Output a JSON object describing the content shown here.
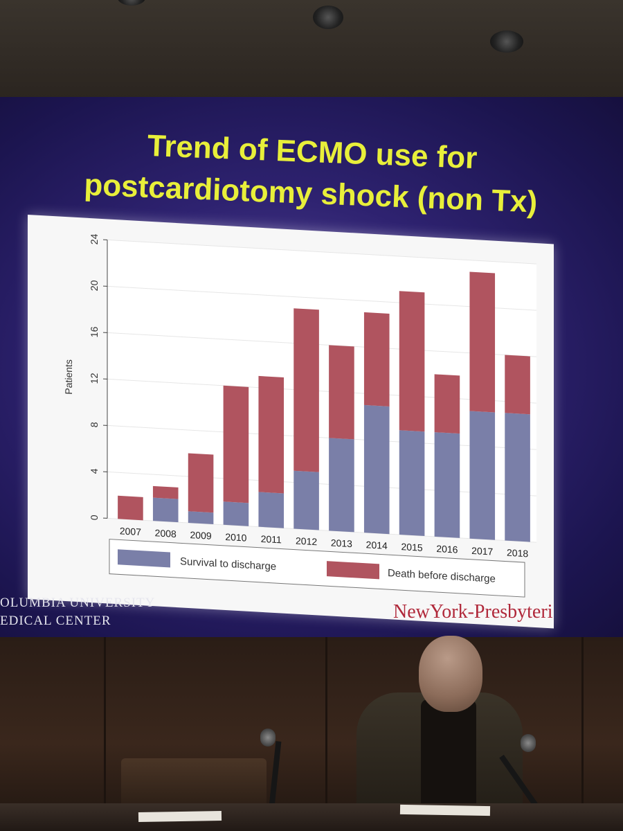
{
  "slide": {
    "title_line1": "Trend of ECMO use for",
    "title_line2": "postcardiotomy shock (non Tx)",
    "footer_left_line1": "OLUMBIA UNIVERSITY",
    "footer_left_line2": "EDICAL CENTER",
    "footer_right": "NewYork-Presbyteri"
  },
  "colors": {
    "title": "#e8ef3a",
    "survival": "#7a7fa8",
    "death": "#b0545f",
    "screen_background": "#2e2270",
    "chart_background": "#f7f7f7"
  },
  "chart_data": {
    "type": "bar",
    "stacked": true,
    "categories": [
      "2007",
      "2008",
      "2009",
      "2010",
      "2011",
      "2012",
      "2013",
      "2014",
      "2015",
      "2016",
      "2017",
      "2018"
    ],
    "series": [
      {
        "name": "Survival to discharge",
        "values": [
          0,
          2,
          1,
          2,
          3,
          5,
          8,
          11,
          9,
          9,
          11,
          11
        ]
      },
      {
        "name": "Death before discharge",
        "values": [
          2,
          1,
          5,
          10,
          10,
          14,
          8,
          8,
          12,
          5,
          12,
          5
        ]
      }
    ],
    "title": "",
    "xlabel": "",
    "ylabel": "Patients",
    "ylim": [
      0,
      24
    ],
    "yticks": [
      "0",
      "4",
      "8",
      "12",
      "16",
      "20",
      "24"
    ],
    "grid": true,
    "legend": "bottom"
  }
}
